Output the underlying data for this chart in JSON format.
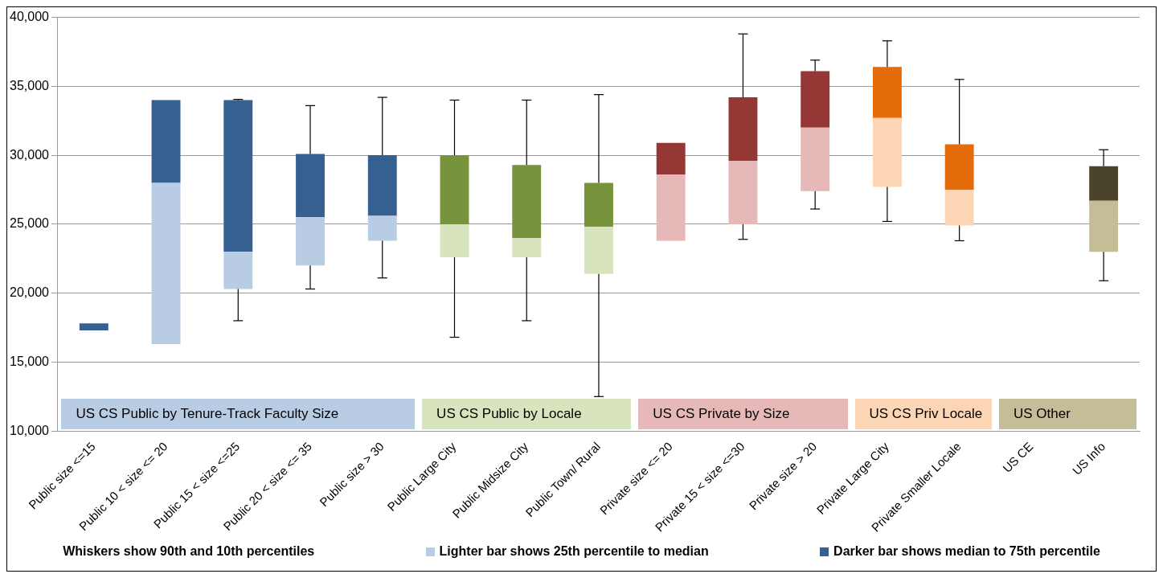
{
  "chart_data": {
    "type": "box",
    "categories": [
      "Public size <=15",
      "Public 10 < size <= 20",
      "Public 15 < size <=25",
      "Public 20 < size <= 35",
      "Public size > 30",
      "Public Large City",
      "Public Midsize City",
      "Public Town/ Rural",
      "Private size <= 20",
      "Private 15 < size <=30",
      "Private size > 20",
      "Private Large City",
      "Private Smaller Locale",
      "US CE",
      "US Info"
    ],
    "boxes": [
      {
        "low": 17300,
        "q1": 17300,
        "median": 17300,
        "q3": 17800,
        "high": 17800
      },
      {
        "low": 16300,
        "q1": 16300,
        "median": 28000,
        "q3": 34000,
        "high": 34000
      },
      {
        "low": 18000,
        "q1": 20300,
        "median": 23000,
        "q3": 34000,
        "high": 34050
      },
      {
        "low": 20300,
        "q1": 22000,
        "median": 25500,
        "q3": 30100,
        "high": 33600
      },
      {
        "low": 21100,
        "q1": 23800,
        "median": 25600,
        "q3": 30000,
        "high": 34200
      },
      {
        "low": 16800,
        "q1": 22600,
        "median": 25000,
        "q3": 30000,
        "high": 34000
      },
      {
        "low": 18000,
        "q1": 22600,
        "median": 24000,
        "q3": 29300,
        "high": 34000
      },
      {
        "low": 12500,
        "q1": 21400,
        "median": 24800,
        "q3": 28000,
        "high": 34400
      },
      {
        "low": 23800,
        "q1": 23800,
        "median": 28600,
        "q3": 30900,
        "high": 30900
      },
      {
        "low": 23900,
        "q1": 25000,
        "median": 29600,
        "q3": 34200,
        "high": 38800
      },
      {
        "low": 26100,
        "q1": 27400,
        "median": 32000,
        "q3": 36100,
        "high": 36900
      },
      {
        "low": 25200,
        "q1": 27700,
        "median": 32700,
        "q3": 36400,
        "high": 38300
      },
      {
        "low": 23800,
        "q1": 24900,
        "median": 27500,
        "q3": 30800,
        "high": 35500
      },
      null,
      {
        "low": 20900,
        "q1": 23000,
        "median": 26700,
        "q3": 29200,
        "high": 30400
      }
    ],
    "colors": [
      [
        "#b8cce4",
        "#376092"
      ],
      [
        "#b8cce4",
        "#376092"
      ],
      [
        "#b8cce4",
        "#376092"
      ],
      [
        "#b8cce4",
        "#376092"
      ],
      [
        "#b8cce4",
        "#376092"
      ],
      [
        "#d7e4bd",
        "#77933c"
      ],
      [
        "#d7e4bd",
        "#77933c"
      ],
      [
        "#d7e4bd",
        "#77933c"
      ],
      [
        "#e6b9b8",
        "#953735"
      ],
      [
        "#e6b9b8",
        "#953735"
      ],
      [
        "#e6b9b8",
        "#953735"
      ],
      [
        "#fcd5b5",
        "#e46c0a"
      ],
      [
        "#fcd5b5",
        "#e46c0a"
      ],
      [
        "#c4bd97",
        "#4a452a"
      ],
      [
        "#c4bd97",
        "#4a452a"
      ]
    ],
    "ylim": [
      10000,
      40000
    ],
    "yticks": [
      {
        "value": 10000,
        "label": "10,000"
      },
      {
        "value": 15000,
        "label": "15,000"
      },
      {
        "value": 20000,
        "label": "20,000"
      },
      {
        "value": 25000,
        "label": "25,000"
      },
      {
        "value": 30000,
        "label": "30,000"
      },
      {
        "value": 35000,
        "label": "35,000"
      },
      {
        "value": 40000,
        "label": "40,000"
      }
    ],
    "grid": "y",
    "annotations": [
      "US CS Public by Tenure-Track Faculty Size",
      "US CS Public by Locale",
      "US CS Private by Size",
      "US CS Priv Locale",
      "US Other",
      "Whiskers show 90th and 10th percentiles",
      "Lighter bar shows 25th percentile to median",
      "Darker bar shows median to 75th percentile"
    ]
  }
}
